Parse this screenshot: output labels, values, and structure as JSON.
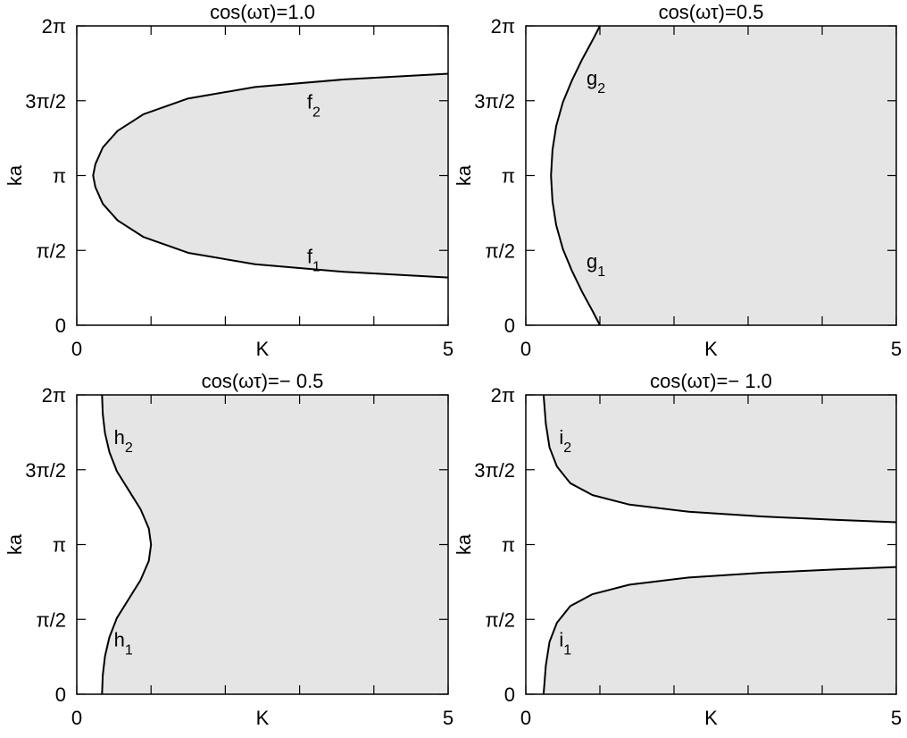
{
  "chart_data": [
    {
      "type": "line",
      "title": "cos(ωτ)=1.0",
      "xlabel": "K",
      "ylabel": "ka",
      "xlim": [
        0,
        5
      ],
      "ylim": [
        0,
        6.2832
      ],
      "x_tick_labels": [
        "0",
        "5"
      ],
      "y_tick_labels": [
        "0",
        "π/2",
        "π",
        "3π/2",
        "2π"
      ],
      "grid": false,
      "shading": "shaded region lies to the right of the f1–f2 boundary curve",
      "curves": [
        {
          "base": "f",
          "sub": "1",
          "label_at": [
            3.1,
            1.3
          ]
        },
        {
          "base": "f",
          "sub": "2",
          "label_at": [
            3.1,
            4.55
          ]
        }
      ],
      "series": [
        {
          "x": [
            5.0,
            3.6,
            2.4,
            1.5,
            0.9,
            0.55,
            0.35,
            0.25,
            0.22,
            0.25,
            0.35,
            0.55,
            0.9,
            1.5,
            2.4,
            3.6,
            5.0
          ],
          "y": [
            1.0,
            1.12,
            1.28,
            1.52,
            1.85,
            2.2,
            2.55,
            2.9,
            3.1416,
            3.38,
            3.73,
            4.08,
            4.43,
            4.76,
            5.0,
            5.16,
            5.28
          ]
        }
      ]
    },
    {
      "type": "line",
      "title": "cos(ωτ)=0.5",
      "xlabel": "K",
      "ylabel": "ka",
      "xlim": [
        0,
        5
      ],
      "ylim": [
        0,
        6.2832
      ],
      "x_tick_labels": [
        "0",
        "5"
      ],
      "y_tick_labels": [
        "0",
        "π/2",
        "π",
        "3π/2",
        "2π"
      ],
      "grid": false,
      "shading": "shaded region lies to the right of the g1–g2 boundary curve",
      "curves": [
        {
          "base": "g",
          "sub": "1",
          "label_at": [
            0.82,
            1.2
          ]
        },
        {
          "base": "g",
          "sub": "2",
          "label_at": [
            0.82,
            5.05
          ]
        }
      ],
      "series": [
        {
          "x": [
            1.0,
            0.9,
            0.76,
            0.62,
            0.5,
            0.41,
            0.36,
            0.34,
            0.36,
            0.41,
            0.5,
            0.62,
            0.76,
            0.9,
            1.0
          ],
          "y": [
            0.0,
            0.3,
            0.7,
            1.15,
            1.6,
            2.1,
            2.6,
            3.1416,
            3.68,
            4.18,
            4.68,
            5.13,
            5.58,
            5.98,
            6.2832
          ]
        }
      ]
    },
    {
      "type": "line",
      "title": "cos(ωτ)=− 0.5",
      "xlabel": "K",
      "ylabel": "ka",
      "xlim": [
        0,
        5
      ],
      "ylim": [
        0,
        6.2832
      ],
      "x_tick_labels": [
        "0",
        "5"
      ],
      "y_tick_labels": [
        "0",
        "π/2",
        "π",
        "3π/2",
        "2π"
      ],
      "grid": false,
      "shading": "shaded region lies to the right of the h1–h2 boundary curve",
      "curves": [
        {
          "base": "h",
          "sub": "1",
          "label_at": [
            0.5,
            1.0
          ]
        },
        {
          "base": "h",
          "sub": "2",
          "label_at": [
            0.5,
            5.25
          ]
        }
      ],
      "series": [
        {
          "x": [
            0.34,
            0.35,
            0.38,
            0.44,
            0.54,
            0.7,
            0.86,
            0.97,
            1.0,
            0.97,
            0.86,
            0.7,
            0.54,
            0.44,
            0.38,
            0.35,
            0.34
          ],
          "y": [
            0.0,
            0.4,
            0.8,
            1.2,
            1.6,
            2.0,
            2.4,
            2.8,
            3.1416,
            3.48,
            3.88,
            4.28,
            4.68,
            5.08,
            5.48,
            5.88,
            6.2832
          ]
        }
      ]
    },
    {
      "type": "line",
      "title": "cos(ωτ)=− 1.0",
      "xlabel": "K",
      "ylabel": "ka",
      "xlim": [
        0,
        5
      ],
      "ylim": [
        0,
        6.2832
      ],
      "x_tick_labels": [
        "0",
        "5"
      ],
      "y_tick_labels": [
        "0",
        "π/2",
        "π",
        "3π/2",
        "2π"
      ],
      "grid": false,
      "shading": "two shaded regions: below i1 and above i2",
      "curves": [
        {
          "base": "i",
          "sub": "1",
          "label_at": [
            0.45,
            1.0
          ]
        },
        {
          "base": "i",
          "sub": "2",
          "label_at": [
            0.45,
            5.25
          ]
        }
      ],
      "series": [
        {
          "x": [
            0.24,
            0.27,
            0.32,
            0.42,
            0.6,
            0.9,
            1.4,
            2.2,
            3.2,
            4.2,
            5.0
          ],
          "y": [
            0.0,
            0.6,
            1.1,
            1.5,
            1.85,
            2.1,
            2.3,
            2.45,
            2.55,
            2.62,
            2.67
          ]
        },
        {
          "x": [
            0.24,
            0.27,
            0.32,
            0.42,
            0.6,
            0.9,
            1.4,
            2.2,
            3.2,
            4.2,
            5.0
          ],
          "y": [
            6.2832,
            5.68,
            5.18,
            4.78,
            4.43,
            4.18,
            3.98,
            3.83,
            3.73,
            3.66,
            3.61
          ]
        }
      ]
    }
  ]
}
